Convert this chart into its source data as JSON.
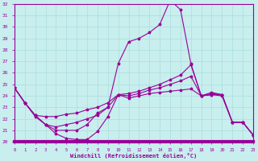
{
  "xlabel": "Windchill (Refroidissement éolien,°C)",
  "x_ticks": [
    0,
    1,
    2,
    3,
    4,
    5,
    6,
    7,
    8,
    9,
    10,
    11,
    12,
    13,
    14,
    15,
    16,
    17,
    18,
    19,
    20,
    21,
    22,
    23
  ],
  "ylim": [
    20,
    32
  ],
  "yticks": [
    20,
    21,
    22,
    23,
    24,
    25,
    26,
    27,
    28,
    29,
    30,
    31,
    32
  ],
  "background_color": "#c8eeee",
  "grid_color": "#aadddd",
  "line_color": "#990099",
  "marker": "*",
  "figwidth": 3.2,
  "figheight": 2.0,
  "dpi": 100,
  "line1_x": [
    0,
    1,
    2,
    3,
    4,
    5,
    6,
    7,
    8,
    9,
    10,
    11,
    12,
    13,
    14,
    15,
    16,
    17,
    18,
    19,
    20,
    21,
    22,
    23
  ],
  "line1_y": [
    24.7,
    23.4,
    22.2,
    21.5,
    20.7,
    20.3,
    20.2,
    20.2,
    20.9,
    22.2,
    24.1,
    23.8,
    24.0,
    24.2,
    24.3,
    24.4,
    24.5,
    24.6,
    24.0,
    24.1,
    24.1,
    21.7,
    21.7,
    20.6
  ],
  "line2_x": [
    0,
    1,
    2,
    3,
    4,
    5,
    6,
    7,
    8,
    9,
    10,
    11,
    12,
    13,
    14,
    15,
    16,
    17,
    18,
    19,
    20,
    21,
    22,
    23
  ],
  "line2_y": [
    24.7,
    23.4,
    22.3,
    22.2,
    22.2,
    22.4,
    22.5,
    22.8,
    23.0,
    23.4,
    24.1,
    24.0,
    24.2,
    24.5,
    24.7,
    25.0,
    25.3,
    25.7,
    24.0,
    24.2,
    24.1,
    21.7,
    21.7,
    20.6
  ],
  "line3_x": [
    0,
    1,
    2,
    3,
    4,
    5,
    6,
    7,
    8,
    9,
    10,
    11,
    12,
    13,
    14,
    15,
    16,
    17,
    18,
    19,
    20,
    21,
    22,
    23
  ],
  "line3_y": [
    24.7,
    23.4,
    22.3,
    21.5,
    21.3,
    21.5,
    21.7,
    22.0,
    22.3,
    23.0,
    24.1,
    24.2,
    24.4,
    24.7,
    25.0,
    25.4,
    25.8,
    26.7,
    24.0,
    24.3,
    24.1,
    21.7,
    21.7,
    20.6
  ],
  "line4_x": [
    0,
    1,
    2,
    3,
    4,
    5,
    6,
    7,
    8,
    9,
    10,
    11,
    12,
    13,
    14,
    15,
    16,
    17,
    18,
    19,
    20,
    21,
    22,
    23
  ],
  "line4_y": [
    24.7,
    23.4,
    22.3,
    21.5,
    21.0,
    21.0,
    21.0,
    21.5,
    22.5,
    23.0,
    26.8,
    28.7,
    29.0,
    29.5,
    30.2,
    32.3,
    31.5,
    26.8,
    24.0,
    24.1,
    24.0,
    21.7,
    21.7,
    20.6
  ]
}
